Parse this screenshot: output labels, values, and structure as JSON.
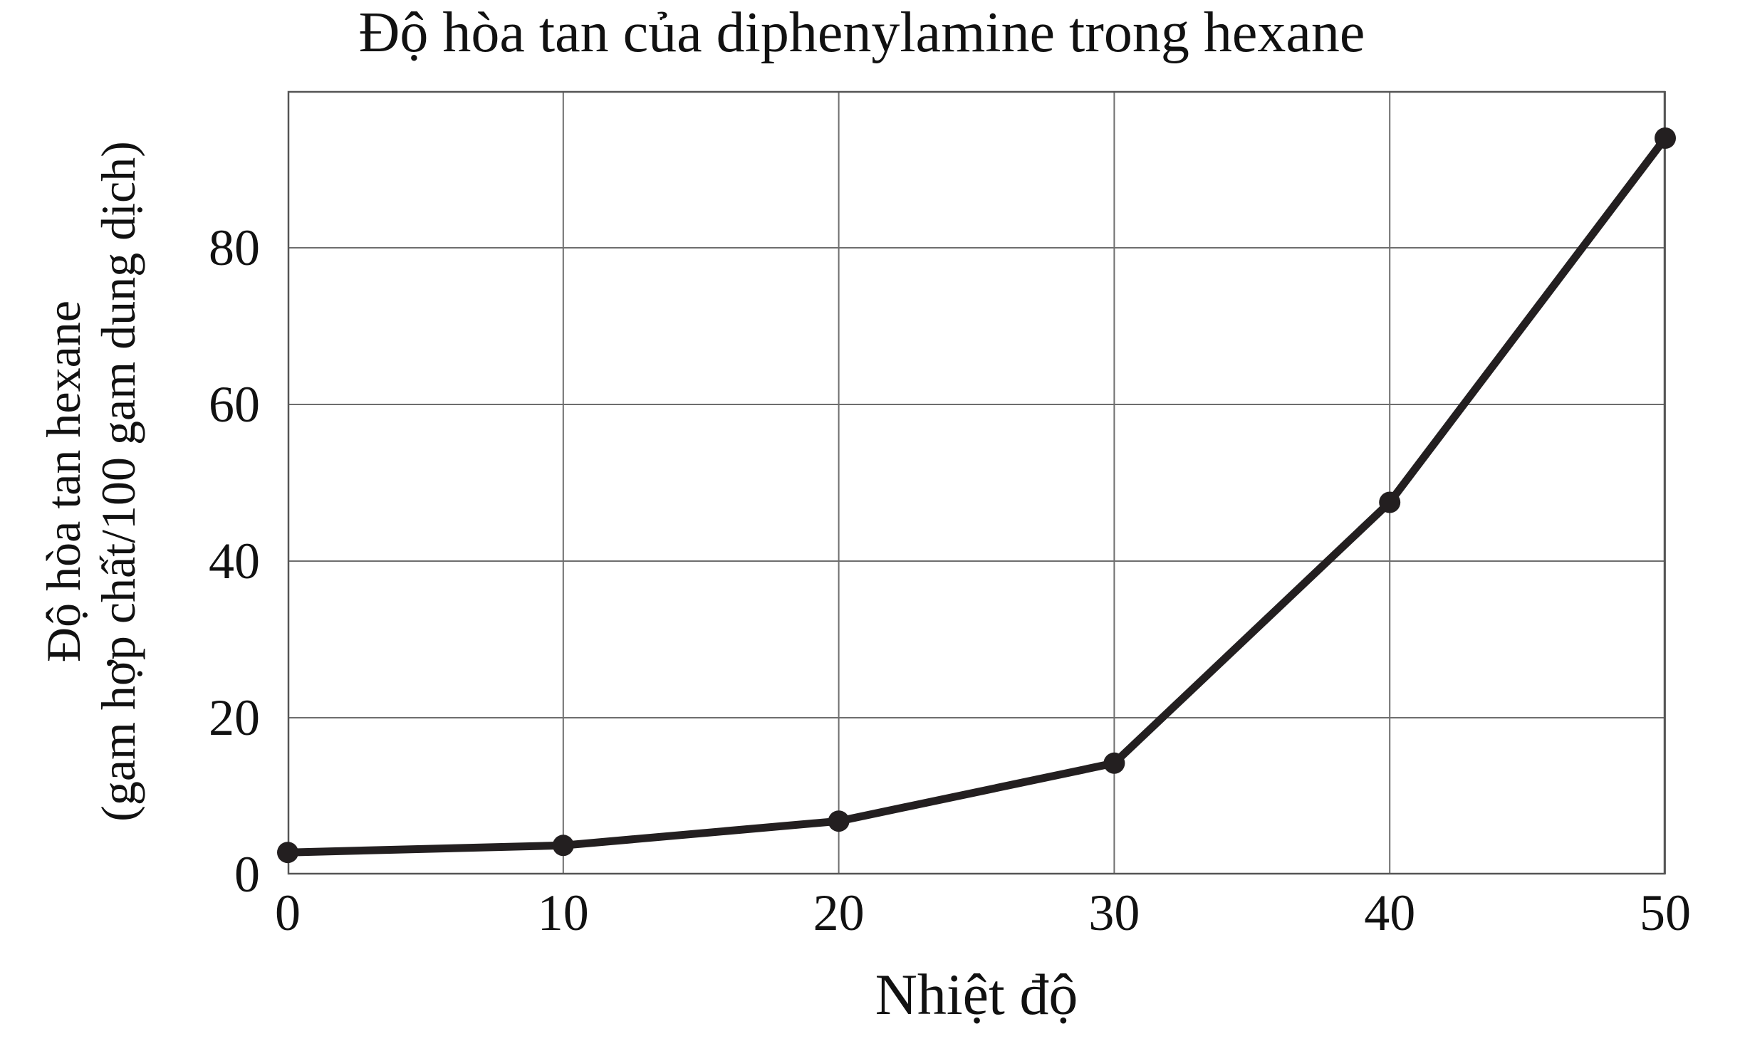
{
  "figure": {
    "title": "Độ hòa tan của diphenylamine trong hexane",
    "x_axis_label": "Nhiệt độ",
    "y_axis_label_line1": "Độ hòa tan hexane",
    "y_axis_label_line2": "(gam hợp chất/100 gam dung dịch)"
  },
  "colors": {
    "text": "#111111",
    "grid": "#6e6e6e",
    "frame": "#555555",
    "line": "#231f20",
    "marker": "#231f20",
    "background": "#ffffff"
  },
  "chart_data": {
    "type": "line",
    "title": "Độ hòa tan của diphenylamine trong hexane",
    "xlabel": "Nhiệt độ",
    "ylabel": "Độ hòa tan hexane (gam hợp chất/100 gam dung dịch)",
    "x": [
      0,
      10,
      20,
      30,
      40,
      50
    ],
    "y": [
      2.8,
      3.7,
      6.8,
      14.2,
      47.5,
      94
    ],
    "series_name": "Độ hòa tan của diphenylamine trong hexane",
    "xlim": [
      0,
      50
    ],
    "ylim": [
      0,
      100
    ],
    "x_ticks": [
      0,
      10,
      20,
      30,
      40,
      50
    ],
    "y_ticks": [
      0,
      20,
      40,
      60,
      80
    ],
    "grid": true,
    "legend": false,
    "marker": "circle",
    "marker_radius": 15,
    "line_width": 11
  }
}
